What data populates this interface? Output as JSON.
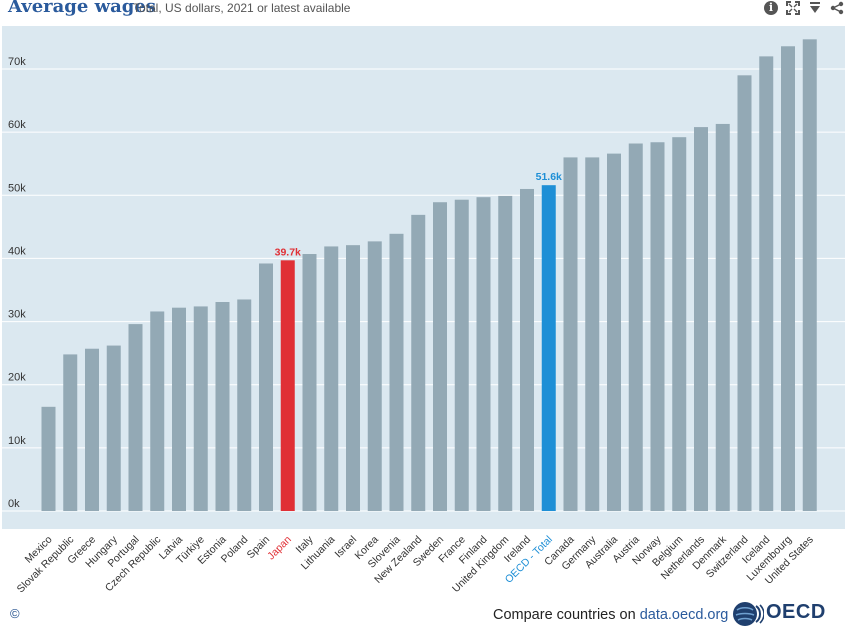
{
  "header": {
    "title": "Average wages",
    "subtitle": "Total, US dollars, 2021 or latest available"
  },
  "icons": [
    "info-icon",
    "fullscreen-icon",
    "download-icon",
    "share-icon"
  ],
  "footer": {
    "copyright": "©",
    "compare_prefix": "Compare countries on ",
    "compare_link": "data.oecd.org",
    "logo_text": "OECD"
  },
  "colors": {
    "plot_bg": "#dbe8f0",
    "bar": "#93a9b5",
    "highlight_japan": "#e03036",
    "highlight_oecd": "#1e8fd6",
    "title": "#2a5a9c"
  },
  "chart_data": {
    "type": "bar",
    "title": "Average wages",
    "subtitle": "Total, US dollars, 2021 or latest available",
    "categories": [
      "Mexico",
      "Slovak Republic",
      "Greece",
      "Hungary",
      "Portugal",
      "Czech Republic",
      "Latvia",
      "Türkiye",
      "Estonia",
      "Poland",
      "Spain",
      "Japan",
      "Italy",
      "Lithuania",
      "Israel",
      "Korea",
      "Slovenia",
      "New Zealand",
      "Sweden",
      "France",
      "Finland",
      "United Kingdom",
      "Ireland",
      "OECD - Total",
      "Canada",
      "Germany",
      "Australia",
      "Austria",
      "Norway",
      "Belgium",
      "Netherlands",
      "Denmark",
      "Switzerland",
      "Iceland",
      "Luxembourg",
      "United States"
    ],
    "values": [
      16.5,
      24.8,
      25.7,
      26.2,
      29.6,
      31.6,
      32.2,
      32.4,
      33.1,
      33.5,
      39.2,
      39.7,
      40.7,
      41.9,
      42.1,
      42.7,
      43.9,
      46.9,
      48.9,
      49.3,
      49.7,
      49.9,
      51.0,
      51.6,
      56.0,
      56.0,
      56.6,
      58.2,
      58.4,
      59.2,
      60.8,
      61.3,
      69.0,
      72.0,
      73.6,
      74.7
    ],
    "highlights": [
      {
        "category": "Japan",
        "label": "39.7k",
        "color": "#e03036"
      },
      {
        "category": "OECD - Total",
        "label": "51.6k",
        "color": "#1e8fd6"
      }
    ],
    "yticks": [
      "0k",
      "10k",
      "20k",
      "30k",
      "40k",
      "50k",
      "60k",
      "70k"
    ],
    "ylim": [
      0,
      78
    ],
    "grid": true,
    "legend": "none"
  }
}
